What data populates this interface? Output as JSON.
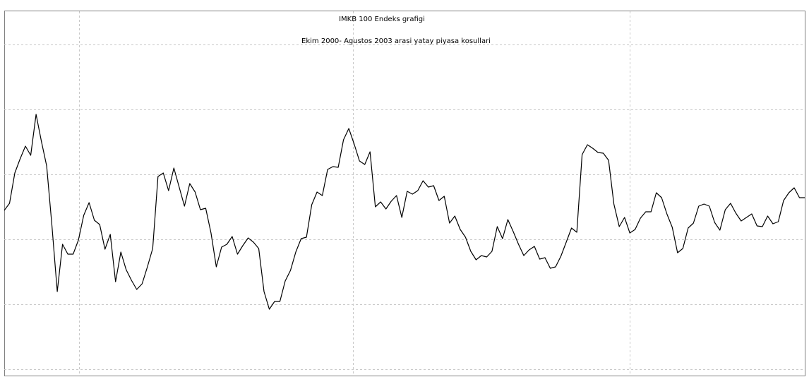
{
  "chart_data": {
    "type": "line",
    "title": "IMKB 100 Endeks grafigi",
    "subtitle": "Ekim 2000- Agustos 2003 arasi yatay piyasa kosullari",
    "color": "#000000",
    "values": [
      225,
      235,
      278,
      298,
      316,
      303,
      361,
      323,
      288,
      203,
      110,
      177,
      163,
      163,
      183,
      218,
      236,
      211,
      205,
      170,
      191,
      124,
      166,
      141,
      126,
      113,
      121,
      145,
      171,
      273,
      278,
      253,
      285,
      258,
      231,
      263,
      251,
      226,
      228,
      193,
      145,
      173,
      177,
      188,
      163,
      175,
      186,
      180,
      171,
      110,
      85,
      96,
      96,
      125,
      140,
      166,
      185,
      187,
      233,
      251,
      246,
      283,
      287,
      286,
      325,
      341,
      319,
      295,
      290,
      308,
      230,
      237,
      227,
      238,
      246,
      215,
      252,
      248,
      253,
      267,
      258,
      260,
      239,
      245,
      207,
      217,
      198,
      187,
      167,
      155,
      161,
      159,
      167,
      202,
      185,
      212,
      195,
      177,
      161,
      169,
      174,
      156,
      158,
      143,
      145,
      160,
      180,
      200,
      194,
      304,
      318,
      313,
      307,
      306,
      296,
      234,
      202,
      215,
      193,
      198,
      214,
      223,
      223,
      250,
      243,
      220,
      201,
      165,
      171,
      200,
      207,
      231,
      234,
      231,
      208,
      197,
      226,
      235,
      221,
      210,
      215,
      220,
      203,
      202,
      217,
      206,
      209,
      239,
      250,
      257,
      243,
      243
    ],
    "xlim": [
      0,
      151
    ],
    "xticks": [
      14.1,
      65.8,
      118.0
    ],
    "ylim": [
      -9,
      507
    ],
    "yticks": [
      0,
      92,
      184,
      276,
      368,
      460
    ],
    "grid": true
  }
}
